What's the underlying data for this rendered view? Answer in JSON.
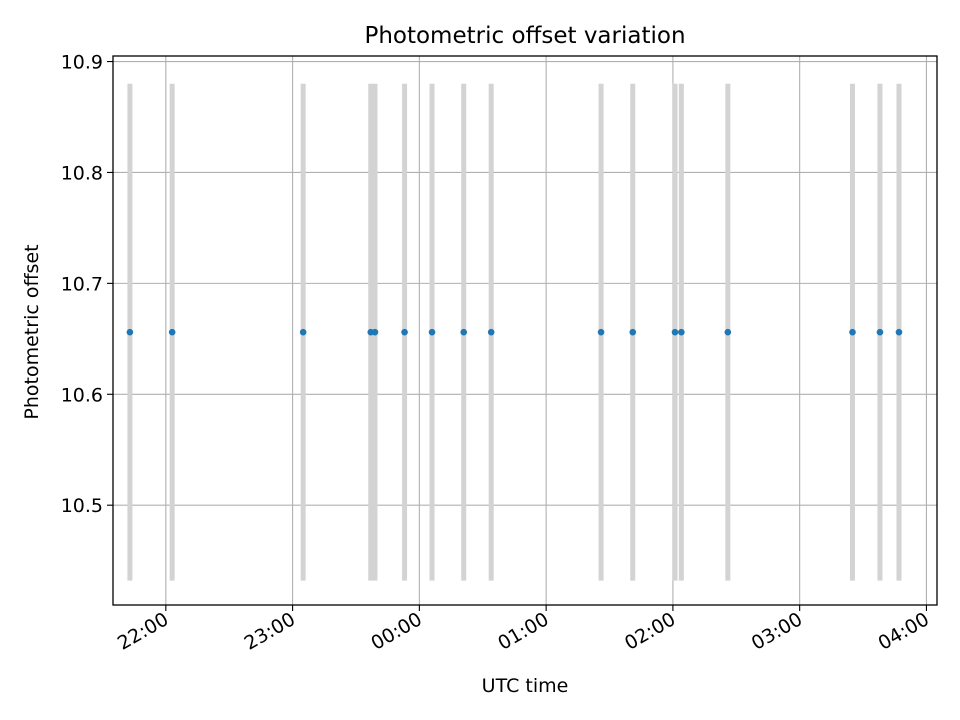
{
  "chart_data": {
    "type": "scatter",
    "title": "Photometric offset variation",
    "xlabel": "UTC time",
    "ylabel": "Photometric offset",
    "grid": true,
    "xlim": [
      "21:35",
      "04:05"
    ],
    "ylim": [
      10.41,
      10.905
    ],
    "x_ticks": [
      "22:00",
      "23:00",
      "00:00",
      "01:00",
      "02:00",
      "03:00",
      "04:00"
    ],
    "y_ticks": [
      "10.5",
      "10.6",
      "10.7",
      "10.8",
      "10.9"
    ],
    "band": [
      10.432,
      10.88
    ],
    "points": [
      {
        "x": "21:43",
        "y": 10.656
      },
      {
        "x": "22:03",
        "y": 10.656
      },
      {
        "x": "23:05",
        "y": 10.656
      },
      {
        "x": "23:37",
        "y": 10.656
      },
      {
        "x": "23:39",
        "y": 10.656
      },
      {
        "x": "23:53",
        "y": 10.656
      },
      {
        "x": "00:06",
        "y": 10.656
      },
      {
        "x": "00:21",
        "y": 10.656
      },
      {
        "x": "00:34",
        "y": 10.656
      },
      {
        "x": "01:26",
        "y": 10.656
      },
      {
        "x": "01:41",
        "y": 10.656
      },
      {
        "x": "02:01",
        "y": 10.656
      },
      {
        "x": "02:04",
        "y": 10.656
      },
      {
        "x": "02:26",
        "y": 10.656
      },
      {
        "x": "03:25",
        "y": 10.656
      },
      {
        "x": "03:38",
        "y": 10.656
      },
      {
        "x": "03:47",
        "y": 10.656
      }
    ],
    "colors": {
      "points": "#1f77b4",
      "bars": "#d3d3d3",
      "grid": "#b0b0b0"
    }
  }
}
